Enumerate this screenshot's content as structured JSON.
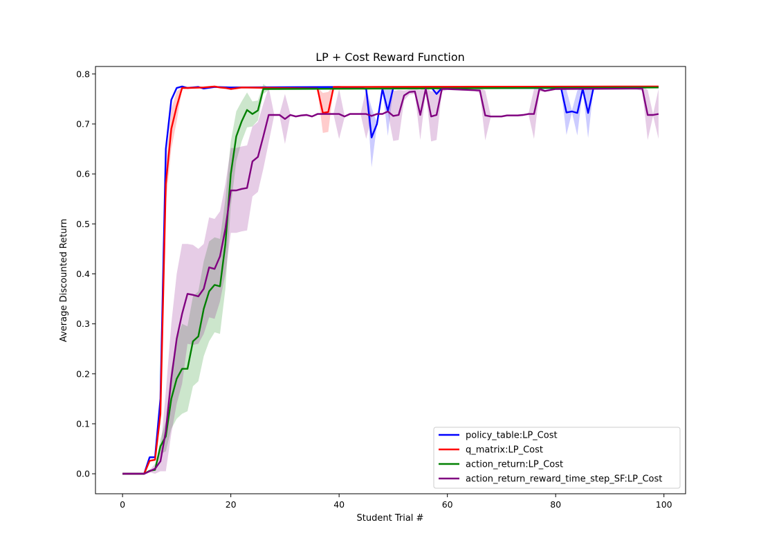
{
  "chart_data": {
    "type": "line",
    "title": "LP + Cost Reward Function",
    "xlabel": "Student Trial #",
    "ylabel": "Average Discounted Return",
    "xlim": [
      -5,
      104
    ],
    "ylim": [
      -0.04,
      0.815
    ],
    "xticks": [
      0,
      20,
      40,
      60,
      80,
      100
    ],
    "yticks": [
      0.0,
      0.1,
      0.2,
      0.3,
      0.4,
      0.5,
      0.6,
      0.7,
      0.8
    ],
    "xtick_labels": [
      "0",
      "20",
      "40",
      "60",
      "80",
      "100"
    ],
    "ytick_labels": [
      "0.0",
      "0.1",
      "0.2",
      "0.3",
      "0.4",
      "0.5",
      "0.6",
      "0.7",
      "0.8"
    ],
    "grid": false,
    "legend_position": "lower-right",
    "band": "shaded band around each line",
    "series": [
      {
        "name": "policy_table:LP_Cost",
        "color": "#0000ff",
        "points": [
          [
            0,
            0
          ],
          [
            4,
            0
          ],
          [
            5,
            0.033
          ],
          [
            6,
            0.033
          ],
          [
            7,
            0.15
          ],
          [
            8,
            0.65
          ],
          [
            9,
            0.748
          ],
          [
            10,
            0.772
          ],
          [
            11,
            0.775
          ],
          [
            12,
            0.772
          ],
          [
            14,
            0.774
          ],
          [
            15,
            0.771
          ],
          [
            17,
            0.774
          ],
          [
            20,
            0.773
          ],
          [
            40,
            0.774
          ],
          [
            44,
            0.772
          ],
          [
            45,
            0.77
          ],
          [
            46,
            0.673
          ],
          [
            47,
            0.7
          ],
          [
            48,
            0.77
          ],
          [
            49,
            0.726
          ],
          [
            50,
            0.772
          ],
          [
            57,
            0.774
          ],
          [
            58,
            0.76
          ],
          [
            59,
            0.772
          ],
          [
            80,
            0.772
          ],
          [
            81,
            0.772
          ],
          [
            82,
            0.723
          ],
          [
            83,
            0.725
          ],
          [
            84,
            0.722
          ],
          [
            85,
            0.77
          ],
          [
            86,
            0.722
          ],
          [
            87,
            0.773
          ],
          [
            99,
            0.774
          ]
        ],
        "band": [
          [
            46,
            0.06
          ],
          [
            49,
            0.05
          ],
          [
            82,
            0.045
          ],
          [
            84,
            0.045
          ],
          [
            86,
            0.05
          ]
        ]
      },
      {
        "name": "q_matrix:LP_Cost",
        "color": "#ff0000",
        "points": [
          [
            0,
            0
          ],
          [
            4,
            0
          ],
          [
            5,
            0.026
          ],
          [
            6,
            0.028
          ],
          [
            7,
            0.12
          ],
          [
            8,
            0.58
          ],
          [
            9,
            0.69
          ],
          [
            10,
            0.735
          ],
          [
            11,
            0.772
          ],
          [
            12,
            0.772
          ],
          [
            15,
            0.773
          ],
          [
            17,
            0.775
          ],
          [
            18,
            0.773
          ],
          [
            19,
            0.772
          ],
          [
            20,
            0.77
          ],
          [
            22,
            0.773
          ],
          [
            36,
            0.771
          ],
          [
            37,
            0.722
          ],
          [
            38,
            0.724
          ],
          [
            39,
            0.774
          ],
          [
            99,
            0.775
          ]
        ],
        "band": [
          [
            7,
            0.02
          ],
          [
            8,
            0.04
          ],
          [
            9,
            0.04
          ],
          [
            10,
            0.03
          ],
          [
            37,
            0.04
          ],
          [
            38,
            0.04
          ]
        ]
      },
      {
        "name": "action_return:LP_Cost",
        "color": "#008000",
        "points": [
          [
            0,
            0
          ],
          [
            4,
            0
          ],
          [
            5,
            0.006
          ],
          [
            6,
            0.008
          ],
          [
            7,
            0.055
          ],
          [
            8,
            0.075
          ],
          [
            9,
            0.15
          ],
          [
            10,
            0.19
          ],
          [
            11,
            0.21
          ],
          [
            12,
            0.21
          ],
          [
            13,
            0.265
          ],
          [
            14,
            0.275
          ],
          [
            15,
            0.33
          ],
          [
            16,
            0.365
          ],
          [
            17,
            0.378
          ],
          [
            18,
            0.375
          ],
          [
            19,
            0.46
          ],
          [
            20,
            0.6
          ],
          [
            21,
            0.675
          ],
          [
            22,
            0.705
          ],
          [
            23,
            0.728
          ],
          [
            24,
            0.72
          ],
          [
            25,
            0.727
          ],
          [
            26,
            0.77
          ],
          [
            27,
            0.77
          ],
          [
            99,
            0.773
          ]
        ],
        "band": [
          [
            7,
            0.015
          ],
          [
            8,
            0.03
          ],
          [
            9,
            0.06
          ],
          [
            10,
            0.08
          ],
          [
            11,
            0.09
          ],
          [
            12,
            0.085
          ],
          [
            13,
            0.09
          ],
          [
            14,
            0.09
          ],
          [
            15,
            0.095
          ],
          [
            16,
            0.1
          ],
          [
            17,
            0.095
          ],
          [
            18,
            0.095
          ],
          [
            19,
            0.09
          ],
          [
            20,
            0.065
          ],
          [
            21,
            0.05
          ],
          [
            22,
            0.04
          ],
          [
            23,
            0.035
          ],
          [
            24,
            0.025
          ],
          [
            25,
            0.02
          ],
          [
            26,
            0.01
          ]
        ]
      },
      {
        "name": "action_return_reward_time_step_SF:LP_Cost",
        "color": "#800080",
        "points": [
          [
            0,
            0
          ],
          [
            4,
            0
          ],
          [
            5,
            0.005
          ],
          [
            6,
            0.01
          ],
          [
            7,
            0.025
          ],
          [
            8,
            0.085
          ],
          [
            9,
            0.19
          ],
          [
            10,
            0.27
          ],
          [
            11,
            0.32
          ],
          [
            12,
            0.36
          ],
          [
            13,
            0.358
          ],
          [
            14,
            0.355
          ],
          [
            15,
            0.37
          ],
          [
            16,
            0.413
          ],
          [
            17,
            0.41
          ],
          [
            18,
            0.435
          ],
          [
            19,
            0.49
          ],
          [
            20,
            0.567
          ],
          [
            21,
            0.567
          ],
          [
            22,
            0.57
          ],
          [
            23,
            0.572
          ],
          [
            24,
            0.625
          ],
          [
            25,
            0.634
          ],
          [
            26,
            0.675
          ],
          [
            27,
            0.718
          ],
          [
            29,
            0.718
          ],
          [
            30,
            0.71
          ],
          [
            31,
            0.718
          ],
          [
            32,
            0.715
          ],
          [
            33,
            0.717
          ],
          [
            34,
            0.718
          ],
          [
            35,
            0.715
          ],
          [
            36,
            0.72
          ],
          [
            40,
            0.72
          ],
          [
            41,
            0.715
          ],
          [
            42,
            0.72
          ],
          [
            45,
            0.72
          ],
          [
            46,
            0.716
          ],
          [
            47,
            0.72
          ],
          [
            48,
            0.72
          ],
          [
            49,
            0.725
          ],
          [
            50,
            0.716
          ],
          [
            51,
            0.718
          ],
          [
            52,
            0.757
          ],
          [
            53,
            0.764
          ],
          [
            54,
            0.765
          ],
          [
            55,
            0.718
          ],
          [
            56,
            0.77
          ],
          [
            57,
            0.715
          ],
          [
            58,
            0.718
          ],
          [
            59,
            0.77
          ],
          [
            60,
            0.77
          ],
          [
            66,
            0.767
          ],
          [
            67,
            0.717
          ],
          [
            68,
            0.715
          ],
          [
            70,
            0.715
          ],
          [
            71,
            0.717
          ],
          [
            73,
            0.717
          ],
          [
            74,
            0.718
          ],
          [
            75,
            0.72
          ],
          [
            76,
            0.72
          ],
          [
            77,
            0.77
          ],
          [
            78,
            0.766
          ],
          [
            80,
            0.77
          ],
          [
            96,
            0.771
          ],
          [
            97,
            0.718
          ],
          [
            98,
            0.718
          ],
          [
            99,
            0.72
          ]
        ],
        "band": [
          [
            6,
            0.01
          ],
          [
            7,
            0.02
          ],
          [
            8,
            0.08
          ],
          [
            9,
            0.11
          ],
          [
            10,
            0.13
          ],
          [
            11,
            0.14
          ],
          [
            12,
            0.1
          ],
          [
            13,
            0.1
          ],
          [
            14,
            0.095
          ],
          [
            15,
            0.09
          ],
          [
            16,
            0.1
          ],
          [
            17,
            0.1
          ],
          [
            18,
            0.09
          ],
          [
            19,
            0.09
          ],
          [
            20,
            0.085
          ],
          [
            21,
            0.085
          ],
          [
            22,
            0.085
          ],
          [
            23,
            0.085
          ],
          [
            24,
            0.07
          ],
          [
            25,
            0.07
          ],
          [
            26,
            0.065
          ],
          [
            27,
            0.055
          ],
          [
            30,
            0.05
          ],
          [
            40,
            0.05
          ],
          [
            45,
            0.05
          ],
          [
            50,
            0.05
          ],
          [
            51,
            0.05
          ],
          [
            52,
            0.01
          ],
          [
            53,
            0.005
          ],
          [
            54,
            0.005
          ],
          [
            55,
            0.05
          ],
          [
            56,
            0.005
          ],
          [
            57,
            0.05
          ],
          [
            58,
            0.05
          ],
          [
            59,
            0.005
          ],
          [
            66,
            0.005
          ],
          [
            67,
            0.05
          ],
          [
            76,
            0.05
          ],
          [
            77,
            0.005
          ],
          [
            96,
            0.005
          ],
          [
            97,
            0.05
          ],
          [
            99,
            0.05
          ]
        ]
      }
    ]
  }
}
